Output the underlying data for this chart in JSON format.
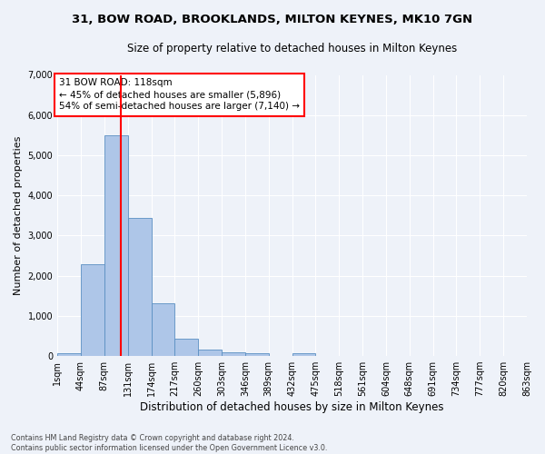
{
  "title": "31, BOW ROAD, BROOKLANDS, MILTON KEYNES, MK10 7GN",
  "subtitle": "Size of property relative to detached houses in Milton Keynes",
  "xlabel": "Distribution of detached houses by size in Milton Keynes",
  "ylabel": "Number of detached properties",
  "footer_line1": "Contains HM Land Registry data © Crown copyright and database right 2024.",
  "footer_line2": "Contains public sector information licensed under the Open Government Licence v3.0.",
  "annotation_title": "31 BOW ROAD: 118sqm",
  "annotation_line1": "← 45% of detached houses are smaller (5,896)",
  "annotation_line2": "54% of semi-detached houses are larger (7,140) →",
  "vline_bin_index": 2.72,
  "bar_color": "#aec6e8",
  "bar_edge_color": "#5a8fc2",
  "vline_color": "red",
  "background_color": "#eef2f9",
  "grid_color": "white",
  "bin_labels": [
    "1sqm",
    "44sqm",
    "87sqm",
    "131sqm",
    "174sqm",
    "217sqm",
    "260sqm",
    "303sqm",
    "346sqm",
    "389sqm",
    "432sqm",
    "475sqm",
    "518sqm",
    "561sqm",
    "604sqm",
    "648sqm",
    "691sqm",
    "734sqm",
    "777sqm",
    "820sqm",
    "863sqm"
  ],
  "bar_heights": [
    75,
    2280,
    5490,
    3430,
    1310,
    430,
    160,
    90,
    60,
    0,
    60,
    0,
    0,
    0,
    0,
    0,
    0,
    0,
    0,
    0
  ],
  "ylim": [
    0,
    7000
  ],
  "yticks": [
    0,
    1000,
    2000,
    3000,
    4000,
    5000,
    6000,
    7000
  ],
  "title_fontsize": 9.5,
  "subtitle_fontsize": 8.5,
  "ylabel_fontsize": 8,
  "xlabel_fontsize": 8.5,
  "tick_fontsize": 7,
  "footer_fontsize": 5.8,
  "annotation_fontsize": 7.5
}
